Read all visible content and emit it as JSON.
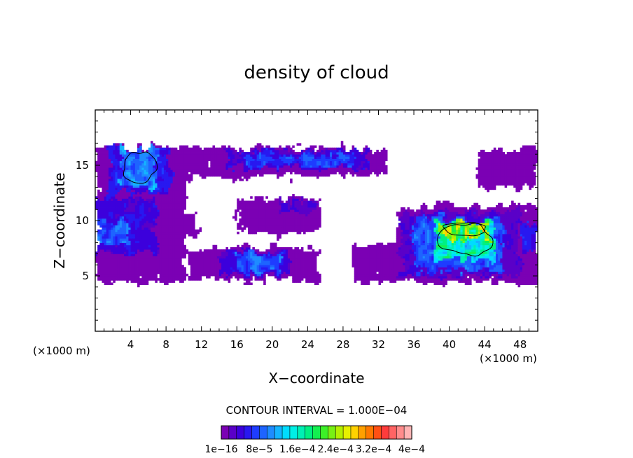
{
  "chart_data": {
    "type": "heatmap",
    "title": "density of cloud",
    "xlabel": "X−coordinate",
    "ylabel": "Z−coordinate",
    "x_unit": "(×1000 m)",
    "x_unit_right": "(×1000 m)",
    "xlim": [
      0,
      50
    ],
    "ylim": [
      0,
      20
    ],
    "x_ticks": [
      4,
      8,
      12,
      16,
      20,
      24,
      28,
      32,
      36,
      40,
      44,
      48
    ],
    "y_ticks": [
      5,
      10,
      15
    ],
    "contour_interval": "CONTOUR INTERVAL = 1.000E−04",
    "colorbar": {
      "labels": [
        "1e−16",
        "8e−5",
        "1.6e−4",
        "2.4e−4",
        "3.2e−4",
        "4e−4"
      ],
      "label_values": [
        1e-16,
        8e-05,
        0.00016,
        0.00024,
        0.00032,
        0.0004
      ],
      "colors": [
        "#7b00b4",
        "#5a00c8",
        "#3c00dc",
        "#2818f0",
        "#1e3cff",
        "#1e64ff",
        "#1e8cff",
        "#14b4ff",
        "#00dcff",
        "#00f0e6",
        "#00f0b4",
        "#00f082",
        "#14f050",
        "#3cf028",
        "#78f014",
        "#b4f000",
        "#e6f000",
        "#ffd200",
        "#ffa000",
        "#ff7800",
        "#ff5014",
        "#ff3c3c",
        "#ff6464",
        "#ff8c8c",
        "#ffb4b4"
      ]
    },
    "regions": [
      {
        "x": [
          0.2,
          10.2
        ],
        "z": [
          4.5,
          16.6
        ],
        "base": 1.5e-16
      },
      {
        "x": [
          10,
          34
        ],
        "z": [
          14.0,
          16.6
        ],
        "base": 1.5e-16
      },
      {
        "x": [
          15,
          31
        ],
        "z": [
          14.8,
          16.4
        ],
        "base": 4e-05
      },
      {
        "x": [
          17,
          29
        ],
        "z": [
          15.0,
          16.1
        ],
        "base": 7e-05
      },
      {
        "x": [
          16,
          29
        ],
        "z": [
          8.8,
          12.0
        ],
        "base": 1.5e-16
      },
      {
        "x": [
          21,
          25
        ],
        "z": [
          10.8,
          11.8
        ],
        "base": 3e-05
      },
      {
        "x": [
          7,
          12
        ],
        "z": [
          8.8,
          11.0
        ],
        "base": 1.5e-16
      },
      {
        "x": [
          10.5,
          25.5
        ],
        "z": [
          4.6,
          7.5
        ],
        "base": 1.5e-16
      },
      {
        "x": [
          14,
          22
        ],
        "z": [
          5.0,
          7.2
        ],
        "base": 4e-05
      },
      {
        "x": [
          16,
          21
        ],
        "z": [
          5.3,
          6.9
        ],
        "base": 8e-05
      },
      {
        "x": [
          29,
          50
        ],
        "z": [
          4.5,
          11.3
        ],
        "base": 1.5e-16
      },
      {
        "x": [
          34.5,
          48
        ],
        "z": [
          5.0,
          10.8
        ],
        "base": 3e-05
      },
      {
        "x": [
          36,
          46
        ],
        "z": [
          5.5,
          10.3
        ],
        "base": 8e-05
      },
      {
        "x": [
          38.5,
          45
        ],
        "z": [
          6.5,
          10.0
        ],
        "base": 0.00015
      },
      {
        "x": [
          39,
          44.5
        ],
        "z": [
          8.5,
          10.0
        ],
        "base": 0.00022
      },
      {
        "x": [
          43,
          50
        ],
        "z": [
          13.0,
          16.5
        ],
        "base": 1.5e-16
      },
      {
        "x": [
          1.5,
          8.5
        ],
        "z": [
          12.5,
          16.5
        ],
        "base": 5e-05
      },
      {
        "x": [
          3,
          7
        ],
        "z": [
          13.0,
          16.5
        ],
        "base": 0.0001
      },
      {
        "x": [
          0.2,
          7
        ],
        "z": [
          7.0,
          12.0
        ],
        "base": 4e-05
      },
      {
        "x": [
          0.2,
          4
        ],
        "z": [
          8.0,
          10.0
        ],
        "base": 8e-05
      },
      {
        "x": [
          48,
          50
        ],
        "z": [
          7.0,
          9.5
        ],
        "base": 6e-05
      }
    ],
    "holes": [
      {
        "x": [
          11,
          15.5
        ],
        "z": [
          9.0,
          14.0
        ]
      },
      {
        "x": [
          25,
          34.5
        ],
        "z": [
          7.5,
          14.0
        ]
      },
      {
        "x": [
          30,
          36
        ],
        "z": [
          11.0,
          13.8
        ]
      },
      {
        "x": [
          32.5,
          43.5
        ],
        "z": [
          13.6,
          17.0
        ]
      }
    ]
  }
}
